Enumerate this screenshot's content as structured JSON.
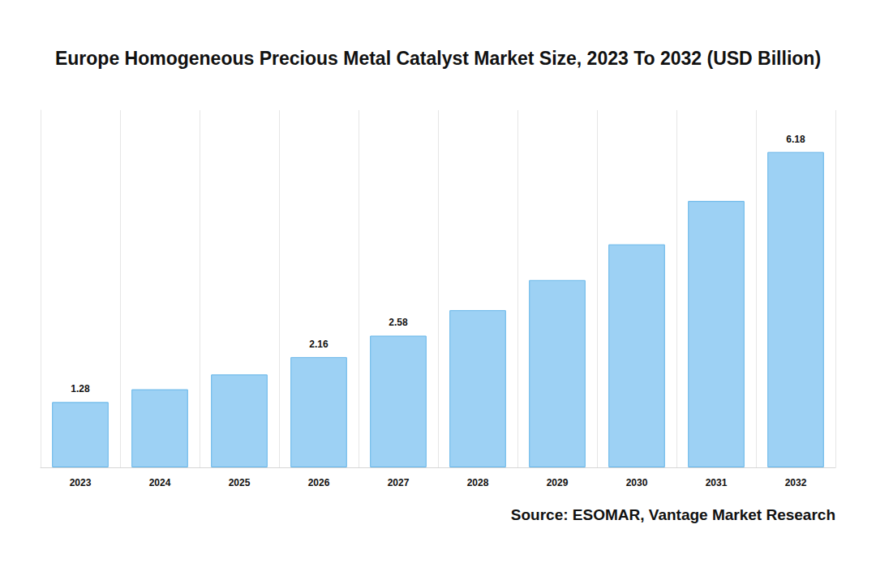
{
  "chart_data": {
    "type": "bar",
    "title": "Europe Homogeneous Precious Metal Catalyst Market Size, 2023 To 2032 (USD Billion)",
    "source": "Source: ESOMAR, Vantage Market Research",
    "categories": [
      "2023",
      "2024",
      "2025",
      "2026",
      "2027",
      "2028",
      "2029",
      "2030",
      "2031",
      "2032"
    ],
    "values": [
      1.28,
      1.53,
      1.82,
      2.16,
      2.58,
      3.08,
      3.67,
      4.37,
      5.22,
      6.18
    ],
    "value_labels": [
      "1.28",
      null,
      null,
      "2.16",
      "2.58",
      null,
      null,
      null,
      null,
      "6.18"
    ],
    "color": "#9dd1f4",
    "ylim": [
      0,
      7
    ],
    "grid": true,
    "data_labels": true,
    "tick_labels": "x"
  }
}
